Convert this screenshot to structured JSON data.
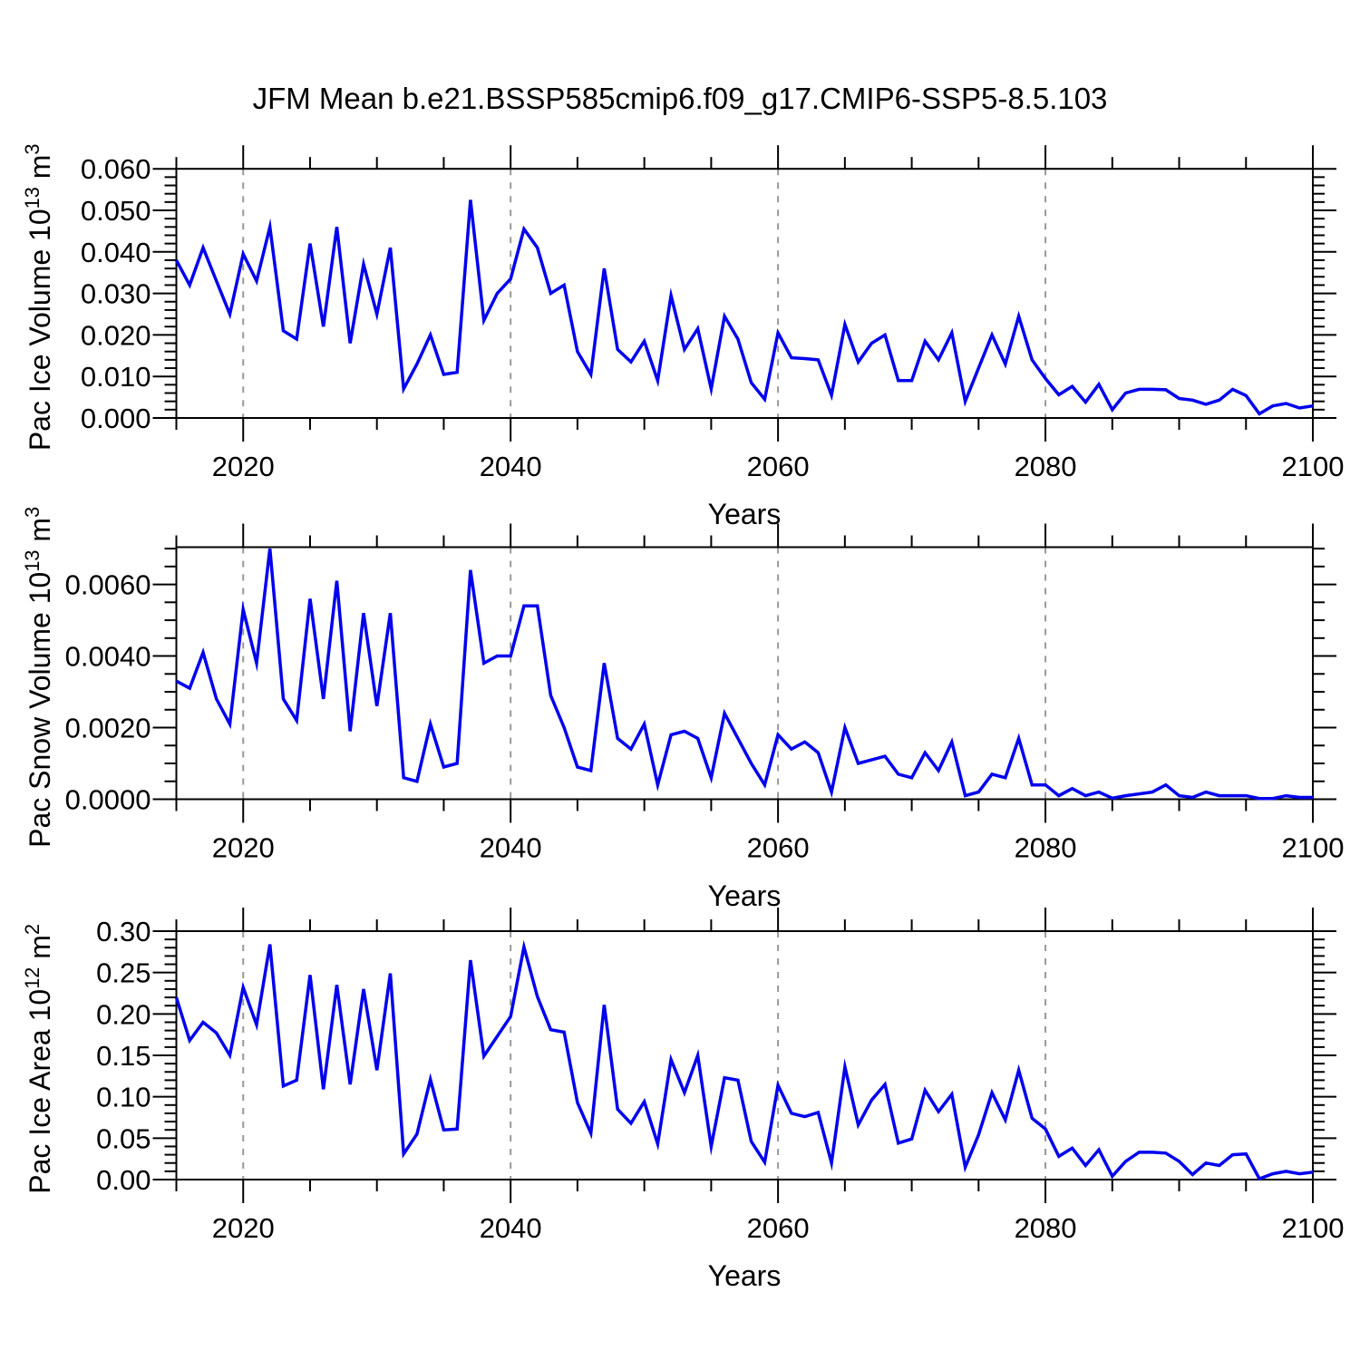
{
  "title": "JFM Mean b.e21.BSSP585cmip6.f09_g17.CMIP6-SSP5-8.5.103",
  "colors": {
    "line": "#0000EE",
    "grid": "#999999",
    "axis": "#000000",
    "background": "#FFFFFF"
  },
  "years": [
    2015,
    2016,
    2017,
    2018,
    2019,
    2020,
    2021,
    2022,
    2023,
    2024,
    2025,
    2026,
    2027,
    2028,
    2029,
    2030,
    2031,
    2032,
    2033,
    2034,
    2035,
    2036,
    2037,
    2038,
    2039,
    2040,
    2041,
    2042,
    2043,
    2044,
    2045,
    2046,
    2047,
    2048,
    2049,
    2050,
    2051,
    2052,
    2053,
    2054,
    2055,
    2056,
    2057,
    2058,
    2059,
    2060,
    2061,
    2062,
    2063,
    2064,
    2065,
    2066,
    2067,
    2068,
    2069,
    2070,
    2071,
    2072,
    2073,
    2074,
    2075,
    2076,
    2077,
    2078,
    2079,
    2080,
    2081,
    2082,
    2083,
    2084,
    2085,
    2086,
    2087,
    2088,
    2089,
    2090,
    2091,
    2092,
    2093,
    2094,
    2095,
    2096,
    2097,
    2098,
    2099,
    2100
  ],
  "chart_data": [
    {
      "type": "line",
      "name": "pac-ice-volume",
      "xlabel": "Years",
      "ylabel_text": "Pac Ice Volume 10^13 m^3",
      "ylabel_parts": {
        "pre": "Pac Ice Volume 10",
        "sup1": "13",
        "mid": " m",
        "sup2": "3"
      },
      "xlim": [
        2015,
        2100
      ],
      "ylim": [
        0,
        0.06
      ],
      "x_ticks": [
        2020,
        2040,
        2060,
        2080,
        2100
      ],
      "x_minor_step": 5,
      "y_ticks": [
        0,
        0.01,
        0.02,
        0.03,
        0.04,
        0.05,
        0.06
      ],
      "y_tick_labels": [
        "0.000",
        "0.010",
        "0.020",
        "0.030",
        "0.040",
        "0.050",
        "0.060"
      ],
      "y_minor_step": 0.002,
      "grid_x": [
        2020,
        2040,
        2060,
        2080
      ],
      "legend": "none",
      "values": [
        0.038,
        0.032,
        0.041,
        0.033,
        0.025,
        0.0395,
        0.033,
        0.046,
        0.021,
        0.019,
        0.042,
        0.022,
        0.046,
        0.018,
        0.037,
        0.025,
        0.041,
        0.007,
        0.013,
        0.02,
        0.0105,
        0.011,
        0.0525,
        0.0235,
        0.03,
        0.0335,
        0.0455,
        0.041,
        0.03,
        0.032,
        0.016,
        0.0105,
        0.036,
        0.0165,
        0.0135,
        0.0185,
        0.009,
        0.0295,
        0.0165,
        0.0215,
        0.007,
        0.0245,
        0.019,
        0.0085,
        0.0045,
        0.0205,
        0.0145,
        0.0143,
        0.014,
        0.0055,
        0.0225,
        0.0135,
        0.018,
        0.02,
        0.009,
        0.009,
        0.0185,
        0.014,
        0.0205,
        0.004,
        0.012,
        0.02,
        0.013,
        0.0245,
        0.014,
        0.0095,
        0.0056,
        0.0076,
        0.0038,
        0.0081,
        0.002,
        0.006,
        0.0069,
        0.0069,
        0.0068,
        0.0047,
        0.0043,
        0.0033,
        0.0043,
        0.0069,
        0.0054,
        0.001,
        0.0029,
        0.0035,
        0.0024,
        0.0029
      ]
    },
    {
      "type": "line",
      "name": "pac-snow-volume",
      "xlabel": "Years",
      "ylabel_text": "Pac Snow Volume 10^13 m^3",
      "ylabel_parts": {
        "pre": "Pac Snow Volume 10",
        "sup1": "13",
        "mid": " m",
        "sup2": "3"
      },
      "xlim": [
        2015,
        2100
      ],
      "ylim": [
        0,
        0.00704
      ],
      "x_ticks": [
        2020,
        2040,
        2060,
        2080,
        2100
      ],
      "x_minor_step": 5,
      "y_ticks": [
        0,
        0.002,
        0.004,
        0.006
      ],
      "y_tick_labels": [
        "0.0000",
        "0.0020",
        "0.0040",
        "0.0060"
      ],
      "y_minor_step": 0.0005,
      "grid_x": [
        2020,
        2040,
        2060,
        2080
      ],
      "legend": "none",
      "values": [
        0.0033,
        0.0031,
        0.0041,
        0.0028,
        0.0021,
        0.0053,
        0.0038,
        0.007,
        0.0028,
        0.0022,
        0.0056,
        0.0028,
        0.0061,
        0.0019,
        0.0052,
        0.0026,
        0.0052,
        0.0006,
        0.0005,
        0.0021,
        0.0009,
        0.001,
        0.0064,
        0.0038,
        0.004,
        0.004,
        0.0054,
        0.0054,
        0.0029,
        0.002,
        0.0009,
        0.0008,
        0.0038,
        0.0017,
        0.0014,
        0.0021,
        0.0004,
        0.0018,
        0.0019,
        0.0017,
        0.0006,
        0.0024,
        0.0017,
        0.001,
        0.0004,
        0.0018,
        0.0014,
        0.0016,
        0.0013,
        0.0002,
        0.002,
        0.001,
        0.0011,
        0.0012,
        0.0007,
        0.0006,
        0.0013,
        0.0008,
        0.0016,
        0.0001,
        0.0002,
        0.0007,
        0.0006,
        0.0017,
        0.0004,
        0.0004,
        0.0001,
        0.0003,
        0.0001,
        0.0002,
        3e-05,
        0.0001,
        0.00015,
        0.0002,
        0.0004,
        0.0001,
        5e-05,
        0.0002,
        0.0001,
        0.0001,
        0.0001,
        2e-05,
        2e-05,
        0.0001,
        5e-05,
        5e-05
      ]
    },
    {
      "type": "line",
      "name": "pac-ice-area",
      "xlabel": "Years",
      "ylabel_text": "Pac Ice Area 10^12 m^2",
      "ylabel_parts": {
        "pre": "Pac Ice Area 10",
        "sup1": "12",
        "mid": " m",
        "sup2": "2"
      },
      "xlim": [
        2015,
        2100
      ],
      "ylim": [
        0,
        0.3
      ],
      "x_ticks": [
        2020,
        2040,
        2060,
        2080,
        2100
      ],
      "x_minor_step": 5,
      "y_ticks": [
        0,
        0.05,
        0.1,
        0.15,
        0.2,
        0.25,
        0.3
      ],
      "y_tick_labels": [
        "0.00",
        "0.05",
        "0.10",
        "0.15",
        "0.20",
        "0.25",
        "0.30"
      ],
      "y_minor_step": 0.01,
      "grid_x": [
        2020,
        2040,
        2060,
        2080
      ],
      "legend": "none",
      "values": [
        0.22,
        0.168,
        0.19,
        0.177,
        0.15,
        0.232,
        0.187,
        0.284,
        0.113,
        0.12,
        0.247,
        0.109,
        0.235,
        0.115,
        0.23,
        0.132,
        0.249,
        0.031,
        0.055,
        0.121,
        0.06,
        0.061,
        0.265,
        0.149,
        0.173,
        0.197,
        0.281,
        0.221,
        0.181,
        0.178,
        0.093,
        0.056,
        0.211,
        0.085,
        0.068,
        0.094,
        0.043,
        0.145,
        0.105,
        0.15,
        0.04,
        0.123,
        0.12,
        0.046,
        0.021,
        0.114,
        0.08,
        0.076,
        0.081,
        0.02,
        0.136,
        0.066,
        0.096,
        0.115,
        0.044,
        0.049,
        0.108,
        0.082,
        0.103,
        0.015,
        0.054,
        0.105,
        0.072,
        0.132,
        0.074,
        0.061,
        0.028,
        0.038,
        0.017,
        0.036,
        0.004,
        0.022,
        0.033,
        0.033,
        0.032,
        0.022,
        0.006,
        0.02,
        0.017,
        0.03,
        0.031,
        0.001,
        0.007,
        0.01,
        0.007,
        0.009
      ]
    }
  ]
}
